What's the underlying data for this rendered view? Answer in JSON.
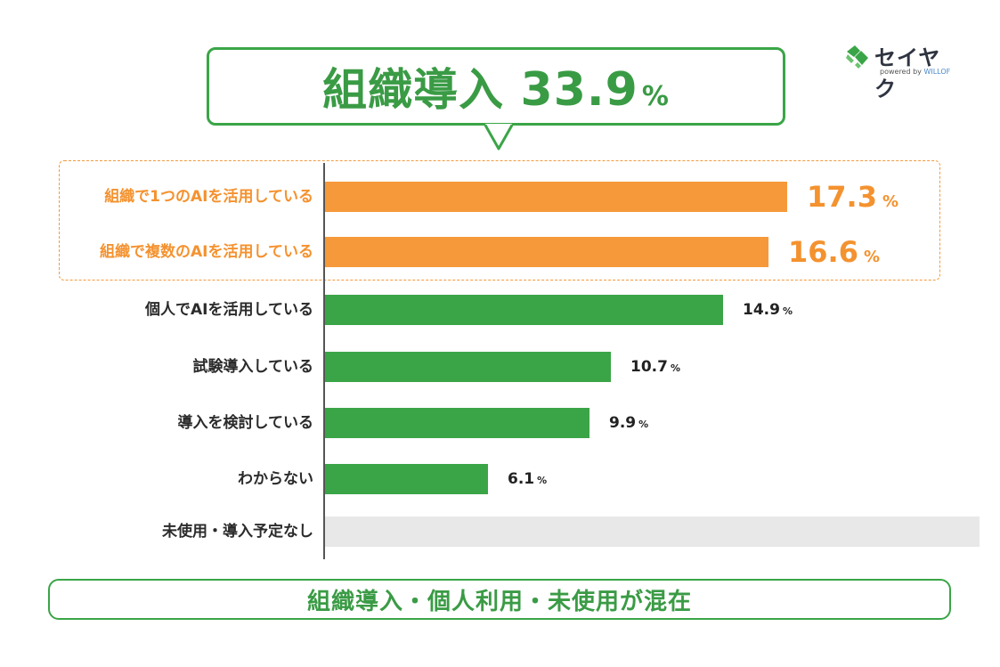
{
  "callout": {
    "prefix": "組織導入",
    "number": "33.9",
    "unit": "%"
  },
  "logo": {
    "name": "セイヤク",
    "powered_by": "powered by",
    "brand": "WILLOF"
  },
  "chart_data": {
    "type": "bar",
    "orientation": "horizontal",
    "categories": [
      "組織で1つのAIを活用している",
      "組織で複数のAIを活用している",
      "個人でAIを活用している",
      "試験導入している",
      "導入を検討している",
      "わからない",
      "未使用・導入予定なし"
    ],
    "values": [
      17.3,
      16.6,
      14.9,
      10.7,
      9.9,
      6.1,
      24.5
    ],
    "unit": "%",
    "xlim": [
      0,
      25
    ],
    "highlighted_categories": [
      "組織で1つのAIを活用している",
      "組織で複数のAIを活用している"
    ],
    "colors": [
      "#f6993a",
      "#f6993a",
      "#3aa547",
      "#3aa547",
      "#3aa547",
      "#3aa547",
      "#e8e8e8"
    ],
    "label_colors": [
      "#f4922f",
      "#f4922f",
      "#222222",
      "#222222",
      "#222222",
      "#222222",
      "#222222"
    ],
    "grid": false,
    "legend": "none"
  },
  "footer": {
    "text": "組織導入・個人利用・未使用が混在"
  }
}
